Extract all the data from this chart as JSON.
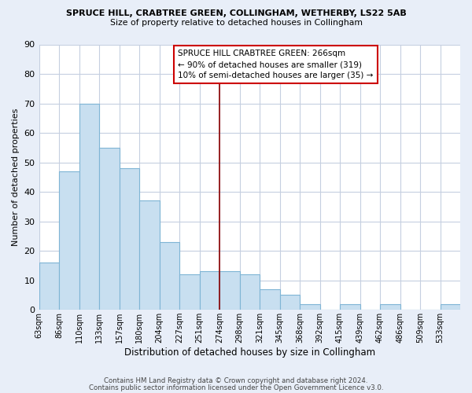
{
  "title": "SPRUCE HILL, CRABTREE GREEN, COLLINGHAM, WETHERBY, LS22 5AB",
  "subtitle": "Size of property relative to detached houses in Collingham",
  "xlabel": "Distribution of detached houses by size in Collingham",
  "ylabel": "Number of detached properties",
  "bar_color": "#c8dff0",
  "bar_edge_color": "#7fb5d5",
  "bin_labels": [
    "63sqm",
    "86sqm",
    "110sqm",
    "133sqm",
    "157sqm",
    "180sqm",
    "204sqm",
    "227sqm",
    "251sqm",
    "274sqm",
    "298sqm",
    "321sqm",
    "345sqm",
    "368sqm",
    "392sqm",
    "415sqm",
    "439sqm",
    "462sqm",
    "486sqm",
    "509sqm",
    "533sqm"
  ],
  "counts": [
    16,
    47,
    70,
    55,
    48,
    37,
    23,
    12,
    13,
    13,
    12,
    7,
    5,
    2,
    0,
    2,
    0,
    2,
    0,
    0,
    2
  ],
  "vline_index": 9,
  "vline_color": "#8b0000",
  "ylim": [
    0,
    90
  ],
  "yticks": [
    0,
    10,
    20,
    30,
    40,
    50,
    60,
    70,
    80,
    90
  ],
  "annotation_title": "SPRUCE HILL CRABTREE GREEN: 266sqm",
  "annotation_line1": "← 90% of detached houses are smaller (319)",
  "annotation_line2": "10% of semi-detached houses are larger (35) →",
  "footer1": "Contains HM Land Registry data © Crown copyright and database right 2024.",
  "footer2": "Contains public sector information licensed under the Open Government Licence v3.0.",
  "bg_color": "#e8eef8",
  "plot_bg_color": "#ffffff",
  "grid_color": "#c5cfe0"
}
